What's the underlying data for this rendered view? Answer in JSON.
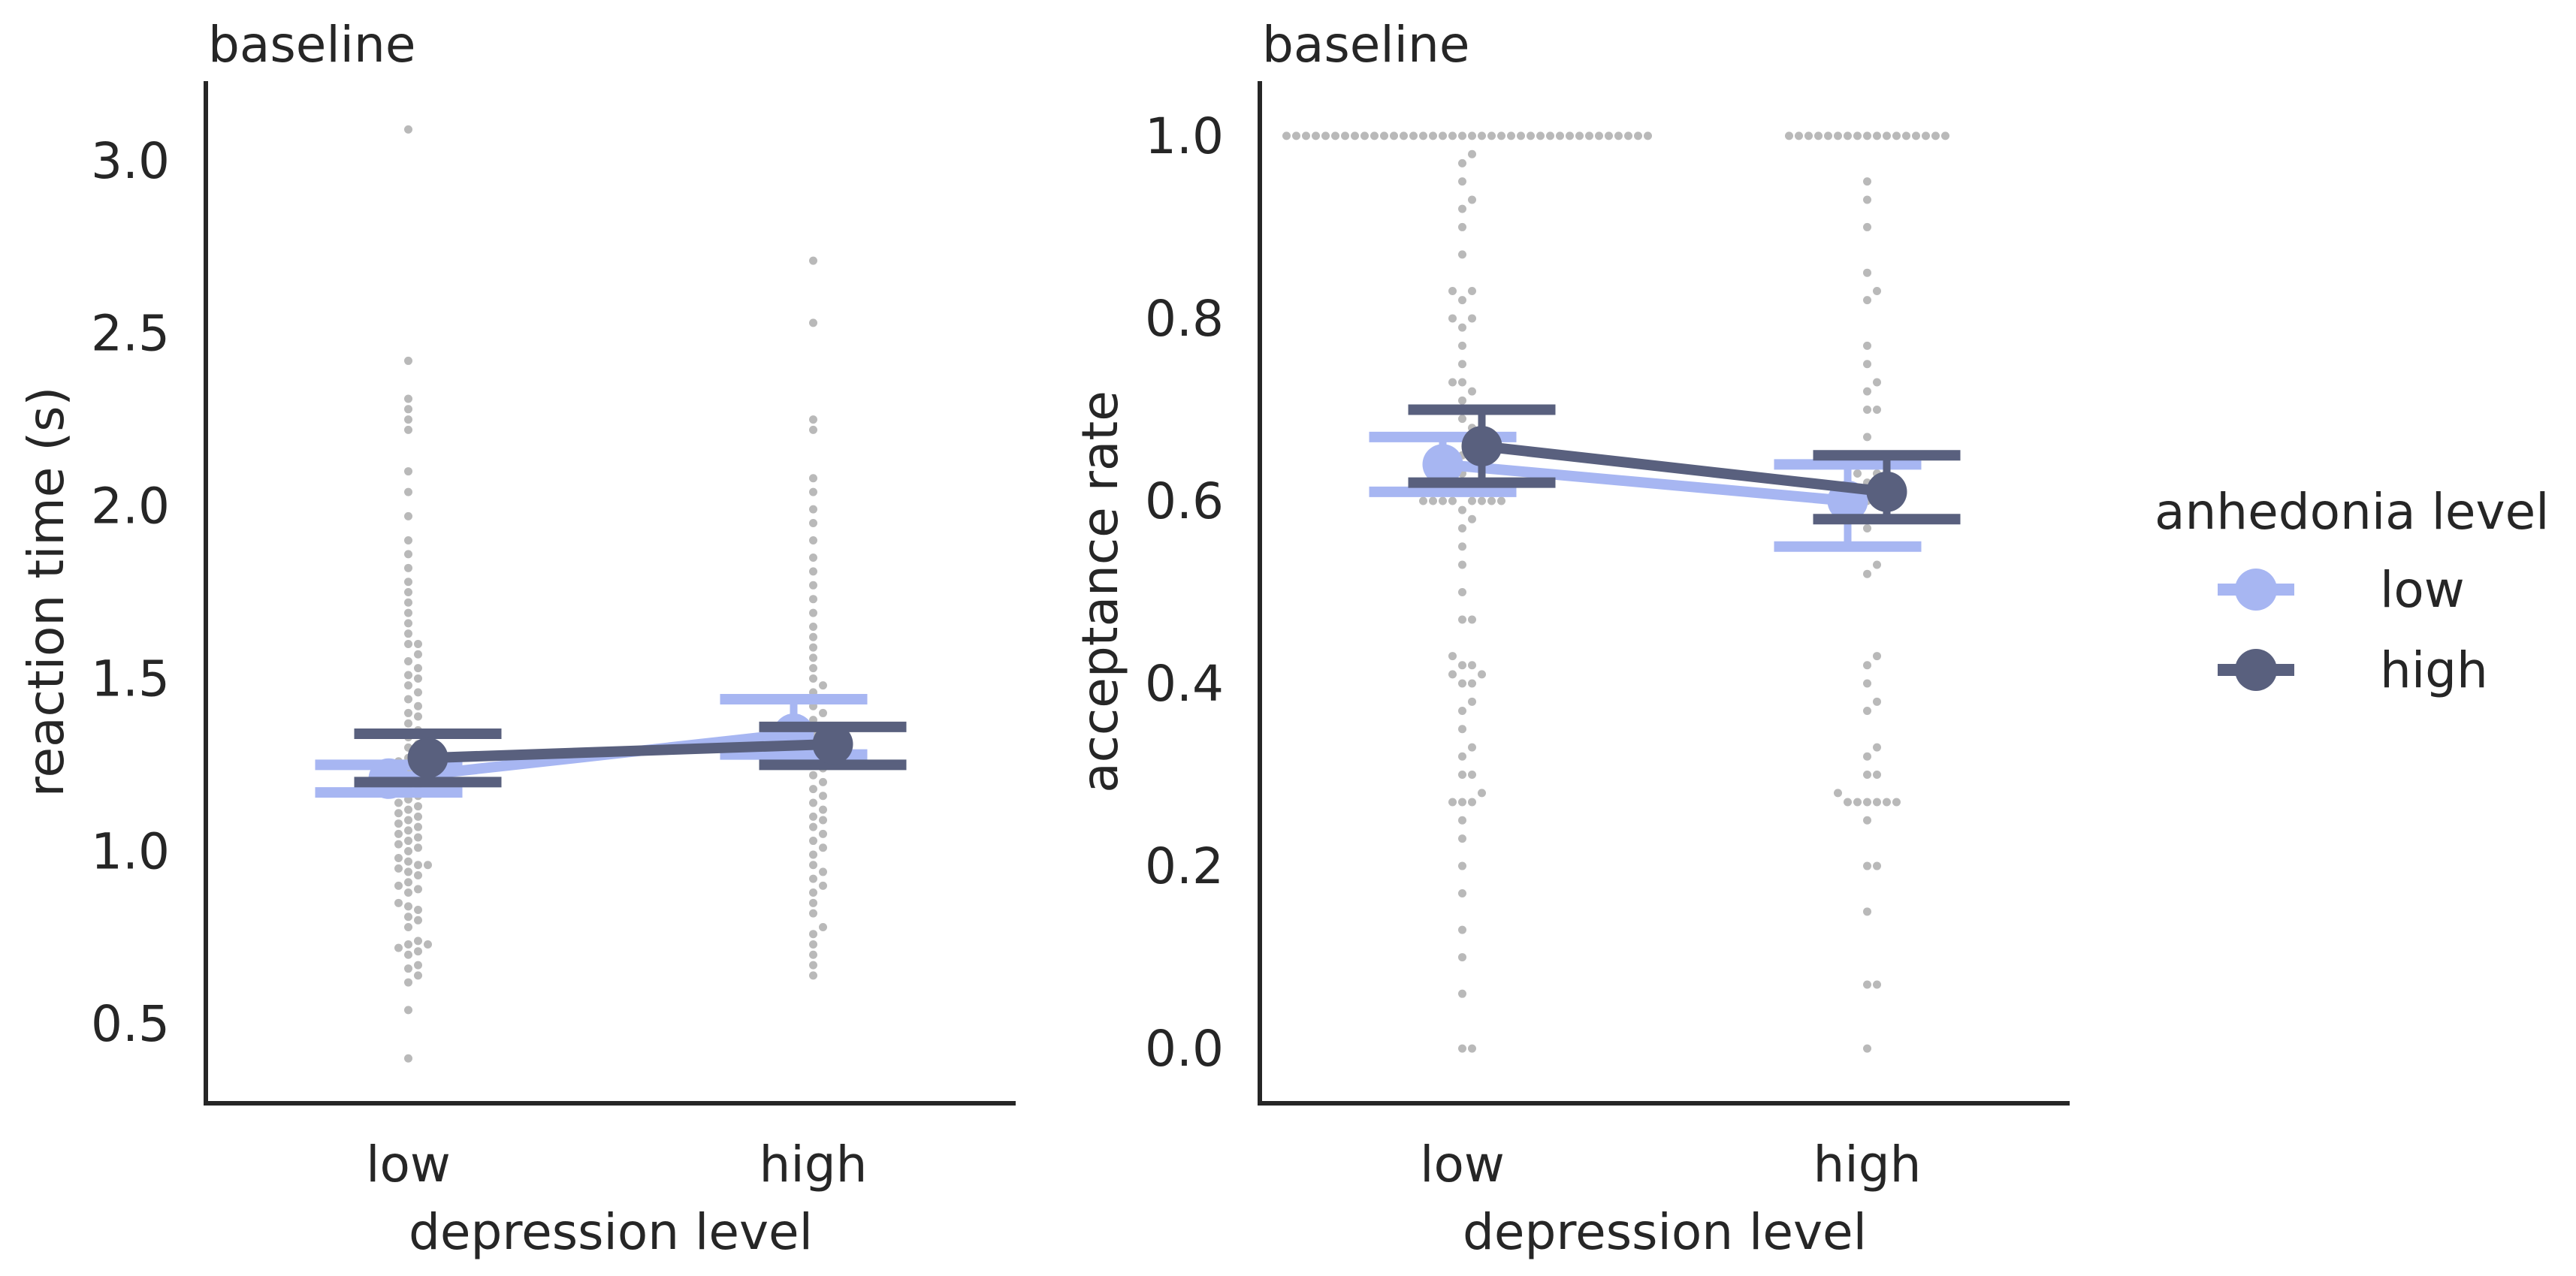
{
  "colors": {
    "low": "#a7b6f2",
    "high": "#59607e",
    "swarm": "#b9b9b9",
    "axis": "#262626",
    "background": "#ffffff"
  },
  "legend": {
    "title": "anhedonia level",
    "items": [
      {
        "label": "low",
        "color": "#a7b6f2"
      },
      {
        "label": "high",
        "color": "#59607e"
      }
    ],
    "placement": "right"
  },
  "chart_data": [
    {
      "type": "scatter",
      "subtype": "swarm + point-plot",
      "title": "baseline",
      "xlabel": "depression level",
      "ylabel": "reaction time (s)",
      "categories": [
        "low",
        "high"
      ],
      "ylim": [
        0.27,
        3.23
      ],
      "yticks": [
        0.5,
        1.0,
        1.5,
        2.0,
        2.5,
        3.0
      ],
      "ytick_labels": [
        "0.5",
        "1.0",
        "1.5",
        "2.0",
        "2.5",
        "3.0"
      ],
      "series": [
        {
          "name": "low",
          "color": "#a7b6f2",
          "values": [
            1.21,
            1.34
          ],
          "ci": [
            [
              1.17,
              1.25
            ],
            [
              1.28,
              1.44
            ]
          ]
        },
        {
          "name": "high",
          "color": "#59607e",
          "values": [
            1.27,
            1.31
          ],
          "ci": [
            [
              1.2,
              1.34
            ],
            [
              1.25,
              1.36
            ]
          ]
        }
      ],
      "points": {
        "low": [
          0.4,
          0.54,
          0.62,
          0.64,
          0.66,
          0.67,
          0.7,
          0.71,
          0.72,
          0.73,
          0.73,
          0.74,
          0.78,
          0.8,
          0.81,
          0.83,
          0.84,
          0.85,
          0.88,
          0.89,
          0.9,
          0.91,
          0.93,
          0.94,
          0.95,
          0.96,
          0.96,
          0.97,
          0.98,
          1.0,
          1.01,
          1.02,
          1.03,
          1.04,
          1.05,
          1.06,
          1.07,
          1.08,
          1.09,
          1.1,
          1.11,
          1.12,
          1.13,
          1.14,
          1.15,
          1.16,
          1.17,
          1.18,
          1.19,
          1.2,
          1.21,
          1.22,
          1.23,
          1.24,
          1.25,
          1.26,
          1.27,
          1.28,
          1.3,
          1.31,
          1.33,
          1.35,
          1.37,
          1.39,
          1.4,
          1.42,
          1.44,
          1.46,
          1.48,
          1.5,
          1.51,
          1.53,
          1.55,
          1.57,
          1.6,
          1.6,
          1.63,
          1.66,
          1.69,
          1.72,
          1.75,
          1.78,
          1.82,
          1.86,
          1.9,
          1.97,
          2.04,
          2.1,
          2.22,
          2.25,
          2.28,
          2.31,
          2.42,
          3.09
        ],
        "high": [
          0.64,
          0.67,
          0.7,
          0.73,
          0.76,
          0.78,
          0.82,
          0.85,
          0.88,
          0.9,
          0.92,
          0.94,
          0.96,
          0.99,
          1.01,
          1.03,
          1.05,
          1.07,
          1.09,
          1.1,
          1.12,
          1.14,
          1.16,
          1.18,
          1.2,
          1.22,
          1.24,
          1.26,
          1.28,
          1.3,
          1.32,
          1.34,
          1.36,
          1.38,
          1.4,
          1.42,
          1.44,
          1.46,
          1.48,
          1.5,
          1.53,
          1.56,
          1.59,
          1.62,
          1.65,
          1.69,
          1.73,
          1.77,
          1.81,
          1.85,
          1.9,
          1.95,
          1.99,
          2.04,
          2.08,
          2.22,
          2.25,
          2.53,
          2.71
        ]
      }
    },
    {
      "type": "scatter",
      "subtype": "swarm + point-plot",
      "title": "baseline",
      "xlabel": "depression level",
      "ylabel": "acceptance rate",
      "categories": [
        "low",
        "high"
      ],
      "ylim": [
        -0.06,
        1.06
      ],
      "yticks": [
        0.0,
        0.2,
        0.4,
        0.6,
        0.8,
        1.0
      ],
      "ytick_labels": [
        "0.0",
        "0.2",
        "0.4",
        "0.6",
        "0.8",
        "1.0"
      ],
      "series": [
        {
          "name": "low",
          "color": "#a7b6f2",
          "values": [
            0.64,
            0.6
          ],
          "ci": [
            [
              0.61,
              0.67
            ],
            [
              0.55,
              0.64
            ]
          ]
        },
        {
          "name": "high",
          "color": "#59607e",
          "values": [
            0.66,
            0.61
          ],
          "ci": [
            [
              0.62,
              0.7
            ],
            [
              0.58,
              0.65
            ]
          ]
        }
      ],
      "points": {
        "low": [
          0.0,
          0.0,
          0.06,
          0.1,
          0.13,
          0.17,
          0.2,
          0.23,
          0.25,
          0.27,
          0.27,
          0.27,
          0.28,
          0.3,
          0.3,
          0.32,
          0.33,
          0.35,
          0.37,
          0.38,
          0.4,
          0.4,
          0.41,
          0.41,
          0.42,
          0.42,
          0.43,
          0.47,
          0.47,
          0.5,
          0.53,
          0.55,
          0.57,
          0.58,
          0.59,
          0.6,
          0.6,
          0.6,
          0.6,
          0.6,
          0.6,
          0.6,
          0.6,
          0.61,
          0.62,
          0.63,
          0.63,
          0.64,
          0.65,
          0.66,
          0.67,
          0.67,
          0.68,
          0.69,
          0.7,
          0.7,
          0.71,
          0.72,
          0.73,
          0.73,
          0.75,
          0.77,
          0.79,
          0.8,
          0.8,
          0.82,
          0.83,
          0.83,
          0.87,
          0.9,
          0.92,
          0.93,
          0.95,
          0.97,
          0.98,
          1.0,
          1.0,
          1.0,
          1.0,
          1.0,
          1.0,
          1.0,
          1.0,
          1.0,
          1.0,
          1.0,
          1.0,
          1.0,
          1.0,
          1.0,
          1.0,
          1.0,
          1.0,
          1.0,
          1.0,
          1.0,
          1.0,
          1.0,
          1.0,
          1.0,
          1.0,
          1.0,
          1.0,
          1.0,
          1.0,
          1.0,
          1.0,
          1.0,
          1.0,
          1.0,
          1.0,
          1.0,
          1.0
        ],
        "high": [
          0.0,
          0.07,
          0.07,
          0.15,
          0.2,
          0.2,
          0.25,
          0.27,
          0.27,
          0.27,
          0.27,
          0.27,
          0.27,
          0.28,
          0.3,
          0.3,
          0.32,
          0.33,
          0.37,
          0.38,
          0.4,
          0.42,
          0.43,
          0.52,
          0.53,
          0.55,
          0.57,
          0.58,
          0.6,
          0.6,
          0.6,
          0.6,
          0.6,
          0.6,
          0.6,
          0.62,
          0.63,
          0.63,
          0.65,
          0.67,
          0.7,
          0.7,
          0.72,
          0.73,
          0.75,
          0.77,
          0.82,
          0.83,
          0.85,
          0.9,
          0.93,
          0.95,
          1.0,
          1.0,
          1.0,
          1.0,
          1.0,
          1.0,
          1.0,
          1.0,
          1.0,
          1.0,
          1.0,
          1.0,
          1.0,
          1.0,
          1.0,
          1.0,
          1.0
        ]
      }
    }
  ]
}
